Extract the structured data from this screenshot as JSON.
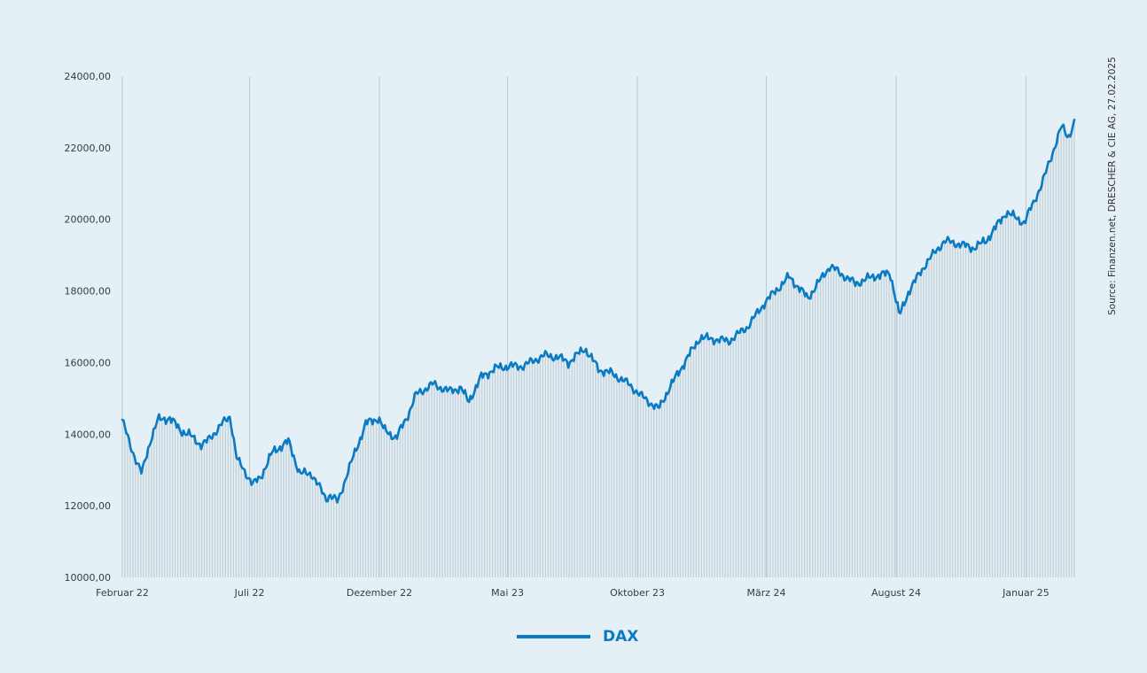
{
  "colors": {
    "background": "#e4f0f6",
    "line": "#0a7bc2",
    "area_fill": "#c3d0d8",
    "gridline": "#b9c9d3",
    "legend_text": "#0a7bc2"
  },
  "source": "Source: Finanzen.net, DRESCHER & CIE AG, 27.02.2025",
  "chart_data": {
    "type": "area",
    "title": "",
    "xlabel": "",
    "ylabel": "",
    "ylim": [
      10000,
      24000
    ],
    "xlim": [
      "2022-02-01",
      "2025-02-27"
    ],
    "y_ticks": [
      10000,
      12000,
      14000,
      16000,
      18000,
      20000,
      22000,
      24000
    ],
    "y_tick_labels": [
      "10000,00",
      "12000,00",
      "14000,00",
      "16000,00",
      "18000,00",
      "20000,00",
      "22000,00",
      "24000,00"
    ],
    "x_ticks": [
      "2022-02-01",
      "2022-07-01",
      "2022-12-01",
      "2023-05-01",
      "2023-10-01",
      "2024-03-01",
      "2024-08-01",
      "2025-01-01"
    ],
    "x_tick_labels": [
      "Februar 22",
      "Juli 22",
      "Dezember 22",
      "Mai 23",
      "Oktober 23",
      "März 24",
      "August 24",
      "Januar 25"
    ],
    "grid": true,
    "legend_position": "bottom-center",
    "series": [
      {
        "name": "DAX",
        "x": [
          "2022-02-01",
          "2022-02-10",
          "2022-02-24",
          "2022-03-07",
          "2022-03-15",
          "2022-03-29",
          "2022-04-11",
          "2022-04-20",
          "2022-05-05",
          "2022-05-12",
          "2022-05-30",
          "2022-06-08",
          "2022-06-16",
          "2022-06-27",
          "2022-07-05",
          "2022-07-14",
          "2022-07-28",
          "2022-08-16",
          "2022-08-29",
          "2022-09-12",
          "2022-09-29",
          "2022-10-04",
          "2022-10-13",
          "2022-10-24",
          "2022-11-04",
          "2022-11-15",
          "2022-11-30",
          "2022-12-07",
          "2022-12-21",
          "2023-01-03",
          "2023-01-13",
          "2023-02-02",
          "2023-02-21",
          "2023-03-07",
          "2023-03-16",
          "2023-03-31",
          "2023-04-18",
          "2023-05-04",
          "2023-05-19",
          "2023-06-13",
          "2023-06-30",
          "2023-07-12",
          "2023-07-31",
          "2023-08-17",
          "2023-09-01",
          "2023-09-21",
          "2023-10-04",
          "2023-10-26",
          "2023-11-08",
          "2023-11-28",
          "2023-12-14",
          "2024-01-17",
          "2024-02-08",
          "2024-02-29",
          "2024-03-28",
          "2024-04-19",
          "2024-05-15",
          "2024-06-14",
          "2024-07-04",
          "2024-07-25",
          "2024-08-05",
          "2024-08-16",
          "2024-09-06",
          "2024-09-27",
          "2024-10-16",
          "2024-10-31",
          "2024-11-15",
          "2024-12-09",
          "2024-12-30",
          "2025-01-20",
          "2025-02-12",
          "2025-02-20",
          "2025-02-27"
        ],
        "values": [
          14400,
          13700,
          12900,
          13900,
          14400,
          14450,
          14100,
          14000,
          13700,
          13800,
          14300,
          14500,
          13300,
          12900,
          12600,
          12800,
          13500,
          13800,
          12900,
          12900,
          12200,
          12300,
          12100,
          12900,
          13600,
          14300,
          14450,
          14100,
          13900,
          14500,
          15100,
          15400,
          15200,
          15300,
          14900,
          15600,
          15850,
          15900,
          15900,
          16200,
          16150,
          16000,
          16400,
          15800,
          15700,
          15400,
          15100,
          14700,
          15300,
          16100,
          16700,
          16600,
          17000,
          17700,
          18400,
          17800,
          18700,
          18200,
          18400,
          18500,
          17300,
          18000,
          18800,
          19400,
          19300,
          19200,
          19400,
          20200,
          19900,
          21000,
          22600,
          22300,
          22700
        ]
      }
    ]
  }
}
